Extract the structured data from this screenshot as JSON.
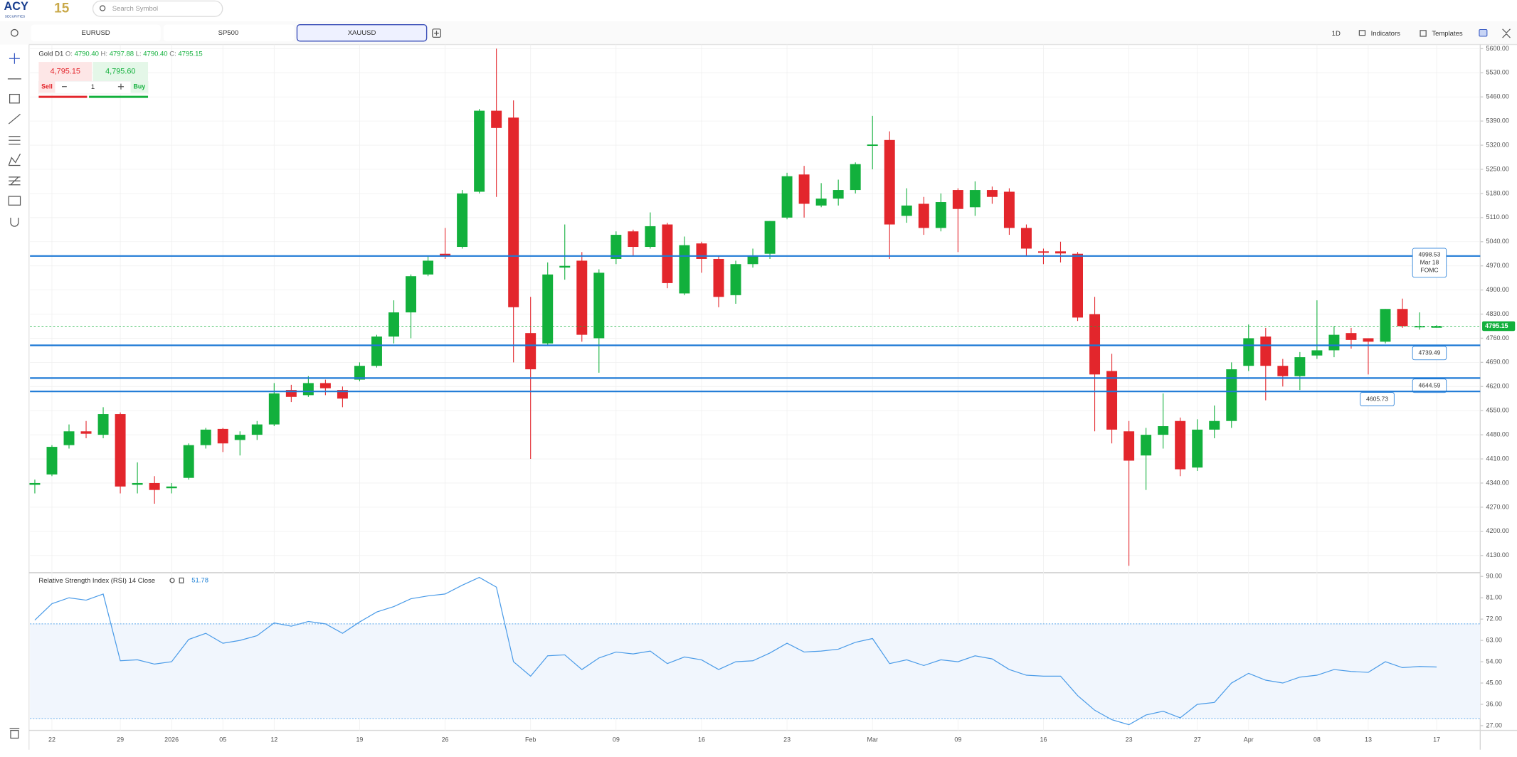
{
  "logo": {
    "name": "ACY",
    "sub": "SECURITIES",
    "badge": "15"
  },
  "search": {
    "placeholder": "Search Symbol"
  },
  "tabs": [
    "EURUSD",
    "SP500",
    "XAUUSD"
  ],
  "toolbar": {
    "interval": "1D",
    "indicators": "Indicators",
    "templates": "Templates"
  },
  "header": {
    "symbol": "Gold",
    "interval": "D1",
    "fields": [
      {
        "key": "O:",
        "value": "4790.40"
      },
      {
        "key": "H:",
        "value": "4797.88"
      },
      {
        "key": "L:",
        "value": "4790.40"
      },
      {
        "key": "C:",
        "value": "4795.15"
      }
    ]
  },
  "trade": {
    "sell_price": "4,795.15",
    "buy_price": "4,795.60",
    "sell": "Sell",
    "buy": "Buy",
    "quantity": "1"
  },
  "chart_data": [
    {
      "type": "candlestick",
      "up_color": "#12b03c",
      "down_color": "#e3262c",
      "categories": [
        null,
        "22",
        null,
        null,
        null,
        "29",
        null,
        null,
        "2026",
        null,
        null,
        "05",
        null,
        null,
        "12",
        null,
        null,
        null,
        null,
        "19",
        null,
        null,
        null,
        null,
        "26",
        null,
        null,
        null,
        null,
        "Feb",
        null,
        null,
        null,
        null,
        "09",
        null,
        null,
        null,
        null,
        "16",
        null,
        null,
        null,
        null,
        "23",
        null,
        null,
        null,
        null,
        "Mar",
        null,
        null,
        null,
        null,
        "09",
        null,
        null,
        null,
        null,
        "16",
        null,
        null,
        null,
        null,
        "23",
        null,
        null,
        null,
        "27",
        null,
        null,
        "Apr",
        null,
        null,
        null,
        "08",
        null,
        null,
        "13",
        null,
        null,
        null,
        "17"
      ],
      "open": [
        4335,
        4365,
        4450,
        4490,
        4480,
        4540,
        4335,
        4340,
        4325,
        4355,
        4450,
        4497,
        4465,
        4480,
        4510,
        4610,
        4595,
        4630,
        4610,
        4640,
        4680,
        4765,
        4835,
        4945,
        5005,
        5025,
        5185,
        5420,
        5400,
        4775,
        4745,
        4965,
        4985,
        4760,
        4990,
        5070,
        5025,
        5090,
        4890,
        5035,
        4990,
        4885,
        4975,
        5005,
        5110,
        5235,
        5145,
        5165,
        5190,
        5318,
        5335,
        5115,
        5150,
        5080,
        5190,
        5140,
        5190,
        5185,
        5080,
        5012,
        5012,
        5005,
        4830,
        4665,
        4490,
        4420,
        4480,
        4520,
        4385,
        4495,
        4520,
        4680,
        4765,
        4680,
        4650,
        4710,
        4725,
        4775,
        4760,
        4750,
        4845,
        4792,
        4790.4
      ],
      "high": [
        4350,
        4450,
        4510,
        4520,
        4560,
        4545,
        4400,
        4360,
        4340,
        4455,
        4500,
        4500,
        4490,
        4520,
        4630,
        4625,
        4650,
        4640,
        4620,
        4690,
        4770,
        4870,
        4945,
        5000,
        5080,
        5190,
        5425,
        5600,
        5450,
        4880,
        4980,
        5090,
        5010,
        4960,
        5070,
        5075,
        5125,
        5095,
        5055,
        5040,
        5000,
        4985,
        5020,
        5100,
        5240,
        5260,
        5210,
        5220,
        5270,
        5405,
        5360,
        5195,
        5170,
        5180,
        5195,
        5215,
        5200,
        5195,
        5090,
        5020,
        5040,
        5010,
        4880,
        4715,
        4520,
        4500,
        4600,
        4530,
        4525,
        4565,
        4690,
        4800,
        4790,
        4700,
        4720,
        4870,
        4795,
        4790,
        4760,
        4845,
        4875,
        4835,
        4797.88
      ],
      "low": [
        4310,
        4360,
        4440,
        4470,
        4470,
        4310,
        4310,
        4280,
        4310,
        4350,
        4440,
        4430,
        4420,
        4465,
        4505,
        4575,
        4590,
        4595,
        4560,
        4635,
        4675,
        4745,
        4760,
        4940,
        4990,
        5020,
        5180,
        5170,
        4690,
        4410,
        4740,
        4930,
        4750,
        4660,
        4975,
        5000,
        5020,
        4905,
        4885,
        4950,
        4850,
        4860,
        4965,
        4990,
        5105,
        5110,
        5140,
        5145,
        5180,
        5250,
        4990,
        5095,
        5060,
        5070,
        5010,
        5115,
        5150,
        5060,
        5000,
        4975,
        4980,
        4810,
        4490,
        4455,
        4100,
        4320,
        4440,
        4360,
        4375,
        4470,
        4500,
        4665,
        4580,
        4620,
        4610,
        4700,
        4705,
        4730,
        4655,
        4745,
        4790,
        4785,
        4790.4
      ],
      "close": [
        4340,
        4445,
        4490,
        4483,
        4540,
        4330,
        4340,
        4320,
        4330,
        4450,
        4495,
        4455,
        4480,
        4510,
        4600,
        4590,
        4630,
        4615,
        4585,
        4680,
        4765,
        4835,
        4940,
        4985,
        5000,
        5180,
        5420,
        5370,
        4850,
        4670,
        4945,
        4970,
        4770,
        4950,
        5060,
        5025,
        5085,
        4920,
        5030,
        4990,
        4880,
        4975,
        5000,
        5100,
        5230,
        5150,
        5165,
        5190,
        5265,
        5322,
        5090,
        5145,
        5080,
        5155,
        5135,
        5190,
        5170,
        5080,
        5020,
        5008,
        5006,
        4820,
        4655,
        4495,
        4405,
        4480,
        4505,
        4380,
        4495,
        4520,
        4670,
        4760,
        4680,
        4650,
        4705,
        4725,
        4770,
        4755,
        4750,
        4845,
        4795,
        4795,
        4795.15
      ],
      "ylim": [
        4080,
        5612
      ],
      "yticks": [
        {
          "value": 4130,
          "label": "4130.00"
        },
        {
          "value": 4200,
          "label": "4200.00"
        },
        {
          "value": 4270,
          "label": "4270.00"
        },
        {
          "value": 4340,
          "label": "4340.00"
        },
        {
          "value": 4410,
          "label": "4410.00"
        },
        {
          "value": 4480,
          "label": "4480.00"
        },
        {
          "value": 4550,
          "label": "4550.00"
        },
        {
          "value": 4620,
          "label": "4620.00"
        },
        {
          "value": 4690,
          "label": "4690.00"
        },
        {
          "value": 4760,
          "label": "4760.00"
        },
        {
          "value": 4830,
          "label": "4830.00"
        },
        {
          "value": 4900,
          "label": "4900.00"
        },
        {
          "value": 4970,
          "label": "4970.00"
        },
        {
          "value": 5040,
          "label": "5040.00"
        },
        {
          "value": 5110,
          "label": "5110.00"
        },
        {
          "value": 5180,
          "label": "5180.00"
        },
        {
          "value": 5250,
          "label": "5250.00"
        },
        {
          "value": 5320,
          "label": "5320.00"
        },
        {
          "value": 5390,
          "label": "5390.00"
        },
        {
          "value": 5460,
          "label": "5460.00"
        },
        {
          "value": 5530,
          "label": "5530.00"
        },
        {
          "value": 5600,
          "label": "5600.00"
        }
      ],
      "grid": true,
      "lines": [
        {
          "value": 4998.53,
          "date": "Mar 18",
          "note": "FOMC"
        },
        {
          "value": 4739.49
        },
        {
          "value": 4644.59
        },
        {
          "value": 4605.73
        }
      ],
      "line_color": "#1f7ad6",
      "last": 4795.15,
      "last_color": "#12b03c"
    },
    {
      "type": "line",
      "title": "Relative Strength Index (RSI)",
      "period": "14",
      "source": "Close",
      "color": "#4a9be8",
      "values": [
        71.6,
        78.5,
        81,
        80,
        82.6,
        54.4,
        54.8,
        53,
        54,
        63.4,
        66,
        61.8,
        63,
        65,
        70.4,
        69,
        71,
        70,
        66,
        70.8,
        75,
        77.3,
        80.6,
        81.8,
        82.6,
        86.3,
        89.6,
        85.5,
        54,
        47.9,
        56.5,
        56.9,
        50.7,
        55.6,
        58.1,
        57.3,
        58.5,
        53.2,
        56,
        54.8,
        50.7,
        54,
        54.4,
        57.7,
        61.8,
        58.1,
        58.5,
        59.3,
        62.2,
        63.8,
        53.2,
        54.8,
        52.4,
        54.8,
        54,
        56.5,
        55.2,
        50.7,
        48.3,
        47.9,
        47.9,
        39.7,
        33.5,
        29.5,
        27.4,
        31.5,
        33.1,
        30.3,
        36,
        36.8,
        45,
        49.1,
        46.2,
        45,
        47.5,
        48.3,
        50.7,
        49.9,
        49.5,
        54,
        51.5,
        52,
        51.78
      ],
      "levels": [
        30,
        70
      ],
      "ylim": [
        25,
        91.6
      ],
      "yticks": [
        {
          "value": 27,
          "label": "27.00"
        },
        {
          "value": 36,
          "label": "36.00"
        },
        {
          "value": 45,
          "label": "45.00"
        },
        {
          "value": 54,
          "label": "54.00"
        },
        {
          "value": 63,
          "label": "63.00"
        },
        {
          "value": 72,
          "label": "72.00"
        },
        {
          "value": 81,
          "label": "81.00"
        },
        {
          "value": 90,
          "label": "90.00"
        }
      ]
    }
  ]
}
